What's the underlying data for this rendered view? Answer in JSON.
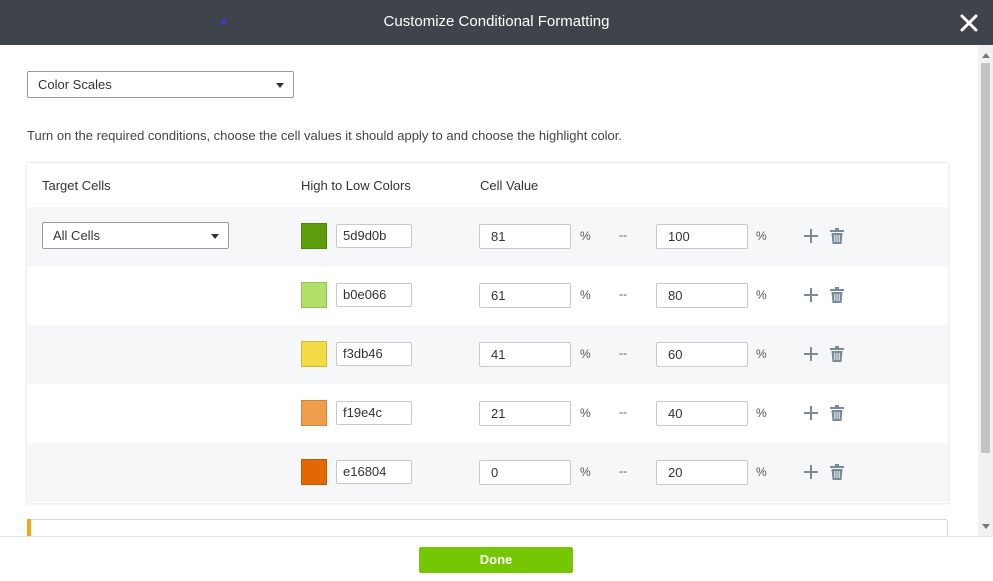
{
  "dialog": {
    "title": "Customize Conditional Formatting"
  },
  "format_type": {
    "selected": "Color Scales"
  },
  "description": "Turn on the required conditions, choose the cell values it should apply to and choose the highlight color.",
  "table": {
    "headers": {
      "target": "Target Cells",
      "colors": "High to Low Colors",
      "value": "Cell Value"
    },
    "target_select": "All Cells",
    "percent_symbol": "%",
    "range_separator": "--",
    "rows": [
      {
        "color": "#5d9d0b",
        "hex": "5d9d0b",
        "min": "81",
        "max": "100"
      },
      {
        "color": "#b0e066",
        "hex": "b0e066",
        "min": "61",
        "max": "80"
      },
      {
        "color": "#f3db46",
        "hex": "f3db46",
        "min": "41",
        "max": "60"
      },
      {
        "color": "#f19e4c",
        "hex": "f19e4c",
        "min": "21",
        "max": "40"
      },
      {
        "color": "#e16804",
        "hex": "e16804",
        "min": "0",
        "max": "20"
      }
    ]
  },
  "footer": {
    "done_label": "Done"
  },
  "colors": {
    "titlebar": "#3f444c",
    "done": "#76c703",
    "accent": "#f0a91a",
    "icon": "#7a8a99"
  },
  "icons": {
    "close": "close-icon",
    "add": "plus-icon",
    "delete": "trash-icon"
  }
}
